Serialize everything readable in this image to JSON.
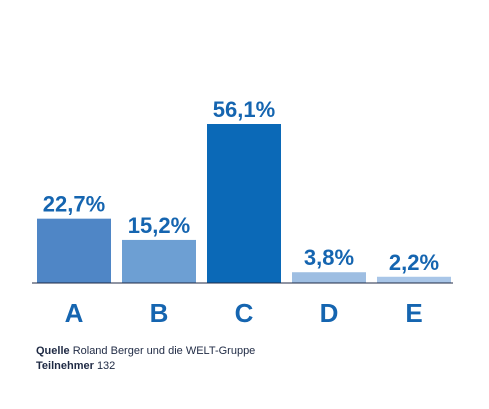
{
  "chart_data": {
    "type": "bar",
    "categories": [
      "A",
      "B",
      "C",
      "D",
      "E"
    ],
    "values": [
      22.7,
      15.2,
      56.1,
      3.8,
      2.2
    ],
    "value_labels": [
      "22,7%",
      "15,2%",
      "56,1%",
      "3,8%",
      "2,2%"
    ],
    "colors": [
      "#4f86c6",
      "#6d9fd3",
      "#0b69b7",
      "#9ebee2",
      "#a9c6e8"
    ],
    "ylim": [
      0,
      60
    ],
    "grid": false,
    "legend": "none",
    "title": "",
    "xlabel": "",
    "ylabel": ""
  },
  "source": {
    "label": "Quelle",
    "text": "Roland Berger und die WELT-Gruppe"
  },
  "participants": {
    "label": "Teilnehmer",
    "count": "132"
  },
  "colors": {
    "label_blue": "#1565b0",
    "baseline": "#1f2a44"
  }
}
